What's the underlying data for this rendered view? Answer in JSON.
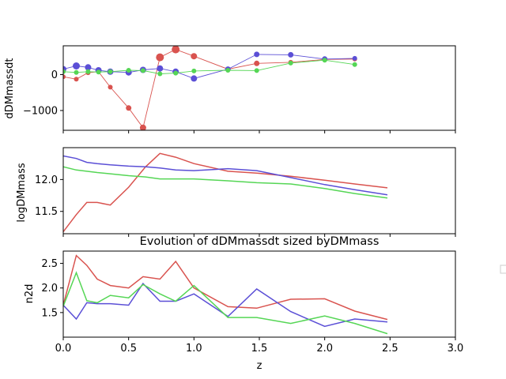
{
  "colors": {
    "red": "#d9534f",
    "blue": "#5b4fd6",
    "green": "#55d655"
  },
  "chart_data": [
    {
      "type": "line",
      "ylabel": "dDMmassdt",
      "xlim": [
        0,
        3.0
      ],
      "ylim": [
        -1550,
        800
      ],
      "yticks": [
        0,
        -1000
      ],
      "ytick_labels": [
        "0",
        "−1000"
      ],
      "markers": true,
      "series": [
        {
          "name": "red",
          "color": "#d9534f",
          "x": [
            0.0,
            0.1,
            0.19,
            0.27,
            0.36,
            0.5,
            0.61,
            0.74,
            0.86,
            1.0,
            1.26,
            1.48,
            1.74,
            2.0,
            2.23
          ],
          "y": [
            -60,
            -130,
            50,
            80,
            -350,
            -930,
            -1480,
            480,
            700,
            510,
            150,
            310,
            340,
            420,
            430
          ],
          "sizes": [
            3,
            3,
            3,
            3,
            3,
            3.5,
            4,
            5,
            5,
            4,
            3,
            3.5,
            3,
            3,
            3
          ]
        },
        {
          "name": "blue",
          "color": "#5b4fd6",
          "x": [
            0.0,
            0.1,
            0.19,
            0.27,
            0.36,
            0.5,
            0.61,
            0.74,
            0.86,
            1.0,
            1.26,
            1.48,
            1.74,
            2.0,
            2.23
          ],
          "y": [
            150,
            240,
            200,
            120,
            80,
            60,
            130,
            170,
            80,
            -110,
            150,
            560,
            550,
            430,
            450
          ],
          "sizes": [
            4,
            4.5,
            4,
            4,
            4,
            4,
            4,
            4,
            4,
            4,
            3.5,
            3.5,
            3.5,
            3.5,
            3
          ]
        },
        {
          "name": "green",
          "color": "#55d655",
          "x": [
            0.0,
            0.1,
            0.19,
            0.27,
            0.36,
            0.5,
            0.61,
            0.74,
            0.86,
            1.0,
            1.26,
            1.48,
            1.74,
            2.0,
            2.23
          ],
          "y": [
            80,
            60,
            80,
            70,
            80,
            120,
            110,
            20,
            40,
            100,
            120,
            110,
            320,
            400,
            280
          ],
          "sizes": [
            3,
            3,
            3,
            3,
            3,
            3,
            3,
            3,
            3,
            3,
            3,
            3,
            3,
            3,
            3
          ]
        }
      ]
    },
    {
      "type": "line",
      "ylabel": "logDMmass",
      "xlim": [
        0,
        3.0
      ],
      "ylim": [
        11.15,
        12.5
      ],
      "yticks": [
        12.0,
        11.5
      ],
      "ytick_labels": [
        "12.0",
        "11.5"
      ],
      "series": [
        {
          "name": "red",
          "color": "#d9534f",
          "x": [
            0.0,
            0.1,
            0.18,
            0.26,
            0.36,
            0.5,
            0.63,
            0.74,
            0.86,
            1.0,
            1.26,
            1.48,
            1.74,
            2.0,
            2.23,
            2.48
          ],
          "y": [
            11.18,
            11.45,
            11.64,
            11.64,
            11.6,
            11.88,
            12.2,
            12.41,
            12.35,
            12.25,
            12.13,
            12.1,
            12.05,
            11.99,
            11.93,
            11.87
          ],
          "sizes": []
        },
        {
          "name": "blue",
          "color": "#5b4fd6",
          "x": [
            0.0,
            0.1,
            0.18,
            0.26,
            0.36,
            0.5,
            0.63,
            0.74,
            0.86,
            1.0,
            1.26,
            1.48,
            1.74,
            2.0,
            2.23,
            2.48
          ],
          "y": [
            12.37,
            12.33,
            12.27,
            12.25,
            12.23,
            12.21,
            12.2,
            12.18,
            12.15,
            12.14,
            12.17,
            12.14,
            12.03,
            11.92,
            11.84,
            11.76
          ],
          "sizes": []
        },
        {
          "name": "green",
          "color": "#55d655",
          "x": [
            0.0,
            0.1,
            0.18,
            0.26,
            0.36,
            0.5,
            0.63,
            0.74,
            0.86,
            1.0,
            1.26,
            1.48,
            1.74,
            2.0,
            2.23,
            2.48
          ],
          "y": [
            12.2,
            12.15,
            12.13,
            12.11,
            12.09,
            12.06,
            12.04,
            12.01,
            12.01,
            12.01,
            11.98,
            11.95,
            11.93,
            11.86,
            11.78,
            11.71
          ],
          "sizes": []
        }
      ]
    },
    {
      "type": "line",
      "title": "Evolution of dDMmassdt sized byDMmass",
      "ylabel": "n2d",
      "xlabel": "z",
      "xlim": [
        0,
        3.0
      ],
      "ylim": [
        1.0,
        2.75
      ],
      "xticks": [
        0.0,
        0.5,
        1.0,
        1.5,
        2.0,
        2.5,
        3.0
      ],
      "xtick_labels": [
        "0.0",
        "0.5",
        "1.0",
        "1.5",
        "2.0",
        "2.5",
        "3.0"
      ],
      "yticks": [
        2.5,
        2.0,
        1.5
      ],
      "ytick_labels": [
        "2.5",
        "2.0",
        "1.5"
      ],
      "series": [
        {
          "name": "red",
          "color": "#d9534f",
          "x": [
            0.0,
            0.1,
            0.18,
            0.26,
            0.36,
            0.5,
            0.61,
            0.74,
            0.86,
            1.0,
            1.26,
            1.48,
            1.74,
            2.0,
            2.23,
            2.48
          ],
          "y": [
            1.65,
            2.66,
            2.46,
            2.18,
            2.05,
            2.0,
            2.23,
            2.18,
            2.54,
            2.0,
            1.62,
            1.59,
            1.77,
            1.78,
            1.53,
            1.36
          ],
          "sizes": []
        },
        {
          "name": "blue",
          "color": "#5b4fd6",
          "x": [
            0.0,
            0.1,
            0.18,
            0.26,
            0.36,
            0.5,
            0.61,
            0.74,
            0.86,
            1.0,
            1.26,
            1.48,
            1.74,
            2.0,
            2.23,
            2.48
          ],
          "y": [
            1.65,
            1.37,
            1.7,
            1.68,
            1.68,
            1.65,
            2.09,
            1.73,
            1.73,
            1.88,
            1.42,
            1.98,
            1.52,
            1.22,
            1.37,
            1.31
          ],
          "sizes": []
        },
        {
          "name": "green",
          "color": "#55d655",
          "x": [
            0.0,
            0.1,
            0.18,
            0.26,
            0.36,
            0.5,
            0.61,
            0.74,
            0.86,
            1.0,
            1.26,
            1.48,
            1.74,
            2.0,
            2.23,
            2.48
          ],
          "y": [
            1.63,
            2.31,
            1.74,
            1.7,
            1.85,
            1.8,
            2.07,
            1.88,
            1.73,
            2.05,
            1.4,
            1.4,
            1.28,
            1.43,
            1.28,
            1.07
          ],
          "sizes": []
        }
      ]
    }
  ]
}
